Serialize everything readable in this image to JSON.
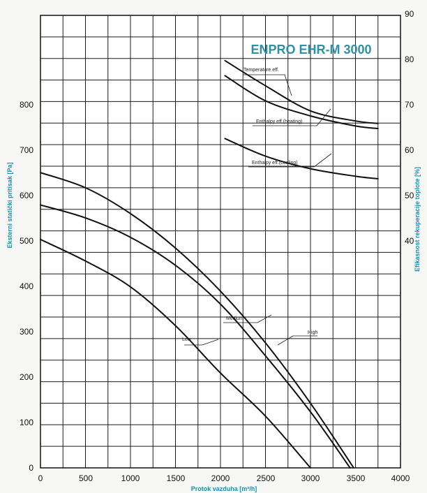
{
  "chart_data": {
    "type": "line",
    "title": "ENPRO EHR-M 3000",
    "xlabel": "Protok vazduha [m³/h]",
    "ylabel_left": "Eksterni statički pritisak [Pa]",
    "ylabel_right": "Efikasnost rekuperacije toplote [%]",
    "xlim": [
      0,
      4000
    ],
    "ylim_left": [
      0,
      1050
    ],
    "ylim_right": [
      0,
      90
    ],
    "x_ticks": [
      "0",
      "500",
      "1000",
      "1500",
      "2000",
      "2500",
      "3000",
      "3500",
      "4000"
    ],
    "left_y_ticks": [
      "0",
      "100",
      "200",
      "300",
      "400",
      "500",
      "600",
      "700",
      "800"
    ],
    "right_y_ticks": [
      "40",
      "50",
      "60",
      "70",
      "80",
      "90"
    ],
    "grid": true,
    "pressure_series": [
      {
        "name": "Low",
        "x": [
          0,
          500,
          1000,
          1500,
          2000,
          2500,
          3000
        ],
        "y": [
          530,
          480,
          420,
          330,
          220,
          120,
          0
        ]
      },
      {
        "name": "Medium",
        "x": [
          0,
          500,
          1000,
          1500,
          2000,
          2500,
          3000,
          3440
        ],
        "y": [
          610,
          580,
          535,
          470,
          380,
          260,
          130,
          0
        ]
      },
      {
        "name": "High",
        "x": [
          0,
          500,
          1000,
          1500,
          2000,
          2500,
          3000,
          3480
        ],
        "y": [
          685,
          650,
          590,
          510,
          410,
          290,
          150,
          0
        ]
      }
    ],
    "efficiency_series": [
      {
        "name": "Temperature eff.",
        "x": [
          2050,
          2500,
          3000,
          3500,
          3750
        ],
        "y": [
          81,
          76,
          71,
          69,
          68.5
        ]
      },
      {
        "name": "Enthalpy eff.(heating)",
        "x": [
          2050,
          2500,
          3000,
          3500,
          3750
        ],
        "y": [
          78,
          73,
          70,
          68,
          67.5
        ]
      },
      {
        "name": "Enthalpy eff.(cooling)",
        "x": [
          2050,
          2500,
          3000,
          3500,
          3750
        ],
        "y": [
          65.5,
          62,
          59.5,
          58,
          57.5
        ]
      }
    ]
  }
}
